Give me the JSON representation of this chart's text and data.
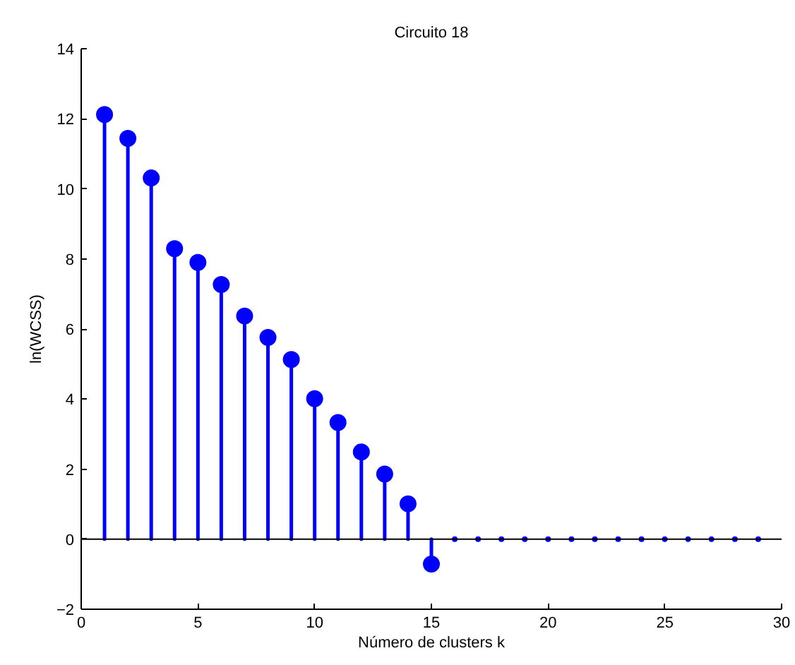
{
  "chart_data": {
    "type": "lollipop",
    "title": "Circuito 18",
    "xlabel": "Número de clusters k",
    "ylabel": "ln(WCSS)",
    "xlim": [
      0,
      30
    ],
    "xticks": [
      0,
      5,
      10,
      15,
      20,
      25,
      30
    ],
    "ylim": [
      -2,
      14
    ],
    "yticks": [
      {
        "value": -2,
        "label": "−2"
      },
      0,
      2,
      4,
      6,
      8,
      10,
      12,
      14
    ],
    "series": [
      {
        "color": "#0000ff",
        "marker": "circle",
        "x": [
          1,
          2,
          3,
          4,
          5,
          6,
          7,
          8,
          9,
          10,
          11,
          12,
          13,
          14,
          15
        ],
        "values": [
          12.12,
          11.44,
          10.31,
          8.29,
          7.9,
          7.27,
          6.37,
          5.76,
          5.13,
          4.01,
          3.33,
          2.49,
          1.86,
          1.01,
          -0.71
        ]
      },
      {
        "color": "#0000ff",
        "marker": "circle",
        "x": [
          16,
          17,
          18,
          19,
          20,
          21,
          22,
          23,
          24,
          25,
          26,
          27,
          28,
          29
        ],
        "values": [
          0,
          0,
          0,
          0,
          0,
          0,
          0,
          0,
          0,
          0,
          0,
          0,
          0,
          0
        ]
      }
    ]
  }
}
